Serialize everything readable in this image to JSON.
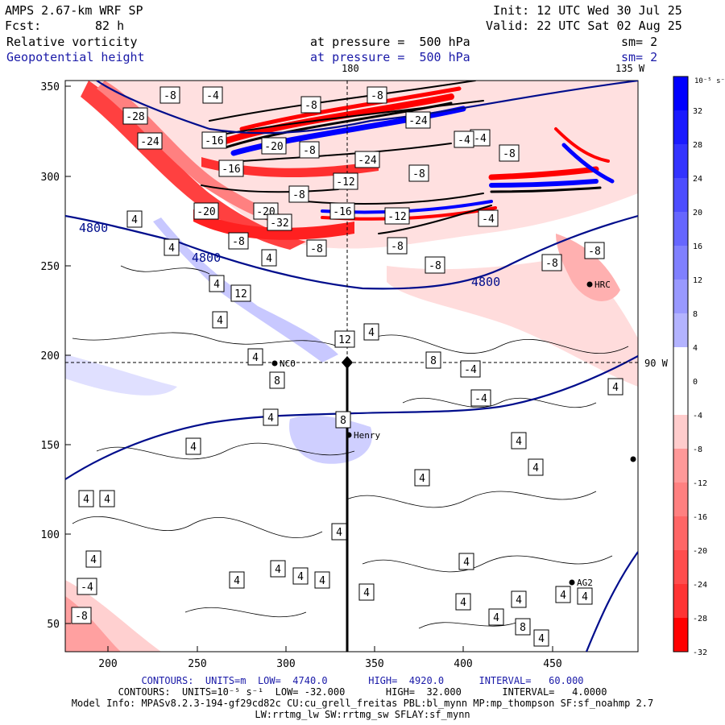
{
  "header": {
    "model": "AMPS 2.67-km WRF SP",
    "init": "Init: 12 UTC Wed 30 Jul 25",
    "fcst_label": "Fcst:",
    "fcst_value": "82 h",
    "valid": "Valid: 22 UTC Sat 02 Aug 25",
    "field1": "Relative vorticity",
    "field1_level": "at pressure =  500 hPa",
    "field1_sm": "sm= 2",
    "field2": "Geopotential height",
    "field2_level": "at pressure =  500 hPa",
    "field2_sm": "sm= 2"
  },
  "map": {
    "top_labels": [
      "180",
      "135 W"
    ],
    "right_label": "90 W",
    "x_ticks": [
      "200",
      "250",
      "300",
      "350",
      "400",
      "450"
    ],
    "y_ticks": [
      "350",
      "300",
      "250",
      "200",
      "150",
      "100",
      "50"
    ],
    "stations": [
      "NCO",
      "Henry",
      "HRC",
      "AG2"
    ],
    "height_contour_labels": [
      "4800",
      "4800",
      "4800"
    ],
    "vort_labels": [
      "-8",
      "-4",
      "-8",
      "-8",
      "-28",
      "-20",
      "-24",
      "-24",
      "-16",
      "-8",
      "-12",
      "-4",
      "-8",
      "-4",
      "-16",
      "-8",
      "-24",
      "-8",
      "-20",
      "-20",
      "-32",
      "-16",
      "-12",
      "-8",
      "-8",
      "-8",
      "-8",
      "-4",
      "-8",
      "-8",
      "4",
      "4",
      "4",
      "4",
      "4",
      "12",
      "12",
      "4",
      "4",
      "8",
      "8",
      "-4",
      "4",
      "-4",
      "4",
      "8",
      "4",
      "4",
      "4",
      "4",
      "4",
      "4",
      "4",
      "4",
      "4",
      "4",
      "4",
      "4",
      "4",
      "4",
      "-4",
      "-8",
      "4",
      "4",
      "4",
      "4",
      "4",
      "8",
      "4"
    ]
  },
  "colorbar": {
    "units": "10⁻⁵ s⁻¹",
    "labels": [
      "32",
      "28",
      "24",
      "20",
      "16",
      "12",
      "8",
      "4",
      "0",
      "-4",
      "-8",
      "-12",
      "-16",
      "-20",
      "-24",
      "-28",
      "-32"
    ],
    "colors": [
      "#0000ff",
      "#1a1aff",
      "#3333ff",
      "#4d4dff",
      "#6666ff",
      "#8080ff",
      "#9999ff",
      "#b3b3ff",
      "#ffffff",
      "#ffffff",
      "#ffcccc",
      "#ff9999",
      "#ff8080",
      "#ff6666",
      "#ff4d4d",
      "#ff3333",
      "#ff0000"
    ]
  },
  "footer": {
    "line1": "CONTOURS:  UNITS=m  LOW=  4740.0       HIGH=  4920.0      INTERVAL=   60.000",
    "line2": "CONTOURS:  UNITS=10⁻⁵ s⁻¹  LOW= -32.000       HIGH=  32.000       INTERVAL=   4.0000",
    "line3": "Model Info: MPASv8.2.3-194-gf29cd82c CU:cu_grell_freitas PBL:bl_mynn MP:mp_thompson SF:sf_noahmp 2.7",
    "line4": "LW:rrtmg_lw SW:rrtmg_sw SFLAY:sf_mynn"
  }
}
